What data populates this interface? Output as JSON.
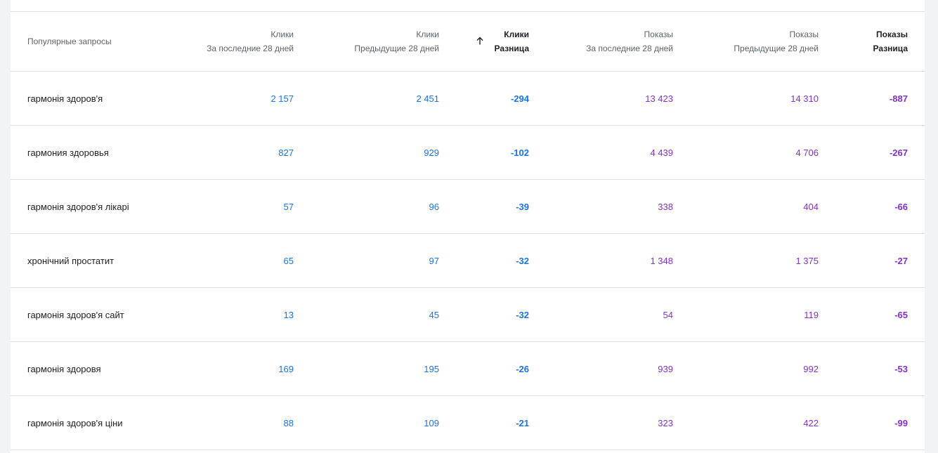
{
  "table": {
    "headers": {
      "query": "Популярные запросы",
      "clicks_current": {
        "line1": "Клики",
        "line2": "За последние 28 дней"
      },
      "clicks_previous": {
        "line1": "Клики",
        "line2": "Предыдущие 28 дней"
      },
      "clicks_diff": {
        "line1": "Клики",
        "line2": "Разница"
      },
      "impr_current": {
        "line1": "Показы",
        "line2": "За последние 28 дней"
      },
      "impr_previous": {
        "line1": "Показы",
        "line2": "Предыдущие 28 дней"
      },
      "impr_diff": {
        "line1": "Показы",
        "line2": "Разница"
      }
    },
    "sort": {
      "column": "clicks_diff",
      "direction": "ascending",
      "icon": "arrow-up-icon"
    },
    "rows": [
      {
        "query": "гармонія здоров'я",
        "clicks_current": "2 157",
        "clicks_previous": "2 451",
        "clicks_diff": "-294",
        "impr_current": "13 423",
        "impr_previous": "14 310",
        "impr_diff": "-887"
      },
      {
        "query": "гармония здоровья",
        "clicks_current": "827",
        "clicks_previous": "929",
        "clicks_diff": "-102",
        "impr_current": "4 439",
        "impr_previous": "4 706",
        "impr_diff": "-267"
      },
      {
        "query": "гармонія здоров'я лікарі",
        "clicks_current": "57",
        "clicks_previous": "96",
        "clicks_diff": "-39",
        "impr_current": "338",
        "impr_previous": "404",
        "impr_diff": "-66"
      },
      {
        "query": "хронічний простатит",
        "clicks_current": "65",
        "clicks_previous": "97",
        "clicks_diff": "-32",
        "impr_current": "1 348",
        "impr_previous": "1 375",
        "impr_diff": "-27"
      },
      {
        "query": "гармонія здоров'я сайт",
        "clicks_current": "13",
        "clicks_previous": "45",
        "clicks_diff": "-32",
        "impr_current": "54",
        "impr_previous": "119",
        "impr_diff": "-65"
      },
      {
        "query": "гармонія здоровя",
        "clicks_current": "169",
        "clicks_previous": "195",
        "clicks_diff": "-26",
        "impr_current": "939",
        "impr_previous": "992",
        "impr_diff": "-53"
      },
      {
        "query": "гармонія здоров'я ціни",
        "clicks_current": "88",
        "clicks_previous": "109",
        "clicks_diff": "-21",
        "impr_current": "323",
        "impr_previous": "422",
        "impr_diff": "-99"
      }
    ]
  },
  "colors": {
    "clicks": "#1a73e8",
    "impressions": "#8430ce",
    "background": "#f1f3f4",
    "divider": "#e0e0e0"
  }
}
